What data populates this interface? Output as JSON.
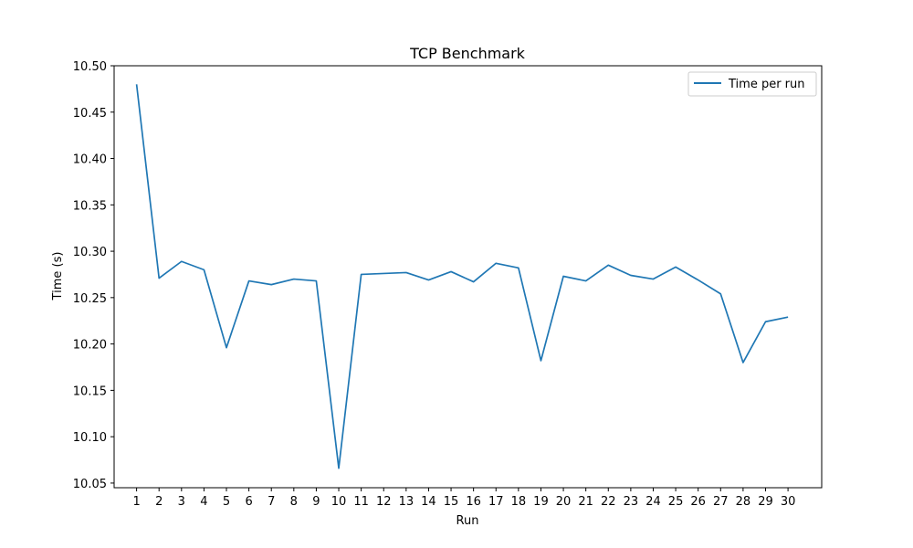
{
  "chart_data": {
    "type": "line",
    "title": "TCP Benchmark",
    "xlabel": "Run",
    "ylabel": "Time (s)",
    "x": [
      1,
      2,
      3,
      4,
      5,
      6,
      7,
      8,
      9,
      10,
      11,
      12,
      13,
      14,
      15,
      16,
      17,
      18,
      19,
      20,
      21,
      22,
      23,
      24,
      25,
      26,
      27,
      28,
      29,
      30
    ],
    "series": [
      {
        "name": "Time per run",
        "color": "#1f77b4",
        "values": [
          10.48,
          10.271,
          10.289,
          10.28,
          10.196,
          10.268,
          10.264,
          10.27,
          10.268,
          10.066,
          10.275,
          10.276,
          10.277,
          10.269,
          10.278,
          10.267,
          10.287,
          10.282,
          10.182,
          10.273,
          10.268,
          10.285,
          10.274,
          10.27,
          10.283,
          10.269,
          10.254,
          10.18,
          10.224,
          10.229
        ]
      }
    ],
    "xticks": [
      "1",
      "2",
      "3",
      "4",
      "5",
      "6",
      "7",
      "8",
      "9",
      "10",
      "11",
      "12",
      "13",
      "14",
      "15",
      "16",
      "17",
      "18",
      "19",
      "20",
      "21",
      "22",
      "23",
      "24",
      "25",
      "26",
      "27",
      "28",
      "29",
      "30"
    ],
    "yticks": [
      "10.05",
      "10.10",
      "10.15",
      "10.20",
      "10.25",
      "10.30",
      "10.35",
      "10.40",
      "10.45",
      "10.50"
    ],
    "ylim": [
      10.045,
      10.5
    ],
    "xlim": [
      0.0,
      31.5
    ],
    "grid": false,
    "legend_position": "top-right"
  }
}
